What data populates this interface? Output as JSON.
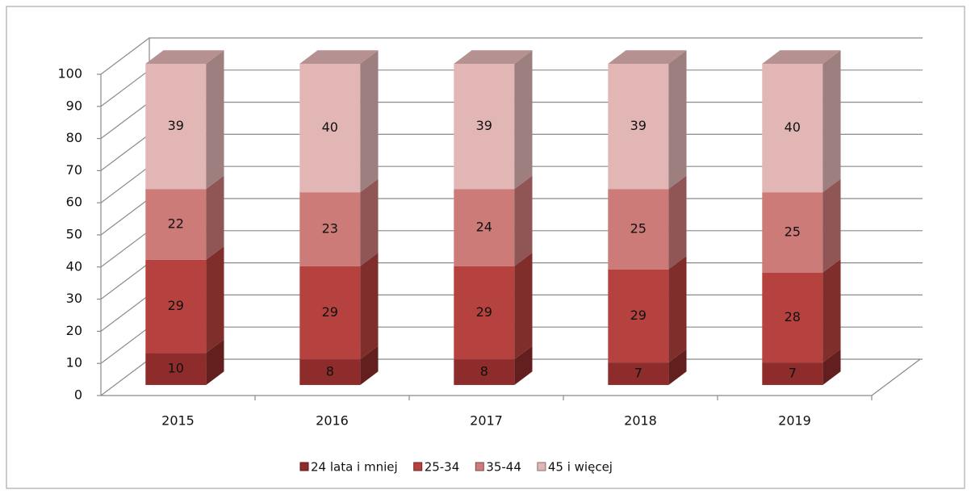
{
  "chart_data": {
    "type": "bar",
    "stacked": true,
    "categories": [
      "2015",
      "2016",
      "2017",
      "2018",
      "2019"
    ],
    "series": [
      {
        "name": "24 lata i mniej",
        "color": "#8e2b2b",
        "values": [
          10,
          8,
          8,
          7,
          7
        ]
      },
      {
        "name": "25-34",
        "color": "#b5423e",
        "values": [
          29,
          29,
          29,
          29,
          28
        ]
      },
      {
        "name": "35-44",
        "color": "#cd7b79",
        "values": [
          22,
          23,
          24,
          25,
          25
        ]
      },
      {
        "name": "45 i więcej",
        "color": "#e2b6b5",
        "values": [
          39,
          40,
          39,
          39,
          40
        ]
      }
    ],
    "ylim": [
      0,
      100
    ],
    "yticks": [
      0,
      10,
      20,
      30,
      40,
      50,
      60,
      70,
      80,
      90,
      100
    ],
    "grid": true,
    "legend": "bottom"
  }
}
